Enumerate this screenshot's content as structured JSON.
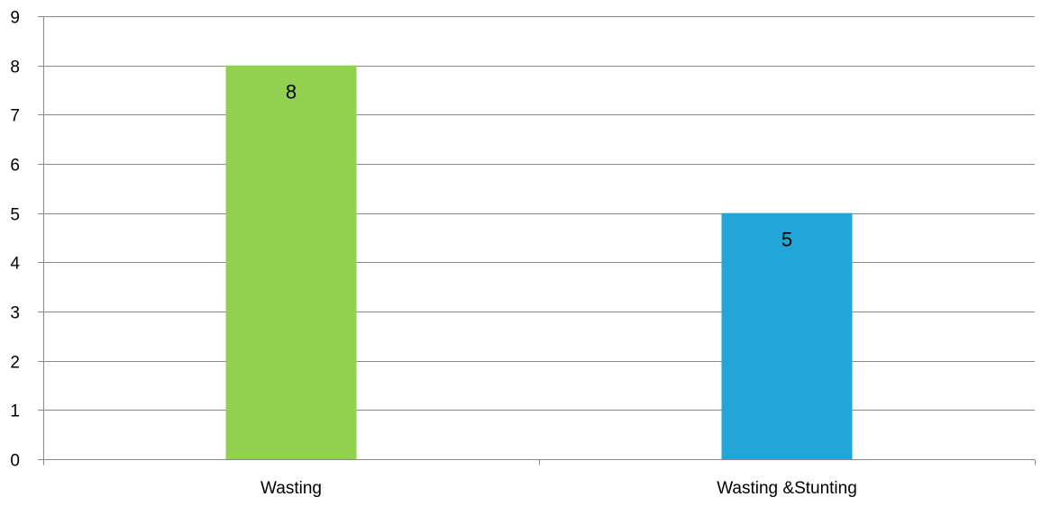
{
  "chart_data": {
    "type": "bar",
    "title": "",
    "xlabel": "",
    "ylabel": "",
    "categories": [
      "Wasting",
      "Wasting &Stunting"
    ],
    "values": [
      8,
      5
    ],
    "data_labels": [
      "8",
      "5"
    ],
    "bar_colors": [
      "#92D050",
      "#22A6D8"
    ],
    "ylim": [
      0,
      9
    ],
    "yticks": [
      0,
      1,
      2,
      3,
      4,
      5,
      6,
      7,
      8,
      9
    ],
    "ytick_labels": [
      "0",
      "1",
      "2",
      "3",
      "4",
      "5",
      "6",
      "7",
      "8",
      "9"
    ],
    "grid": "horizontal",
    "legend": "none"
  },
  "colors": {
    "gridline": "#898989",
    "axis": "#898989",
    "text": "#000000"
  }
}
